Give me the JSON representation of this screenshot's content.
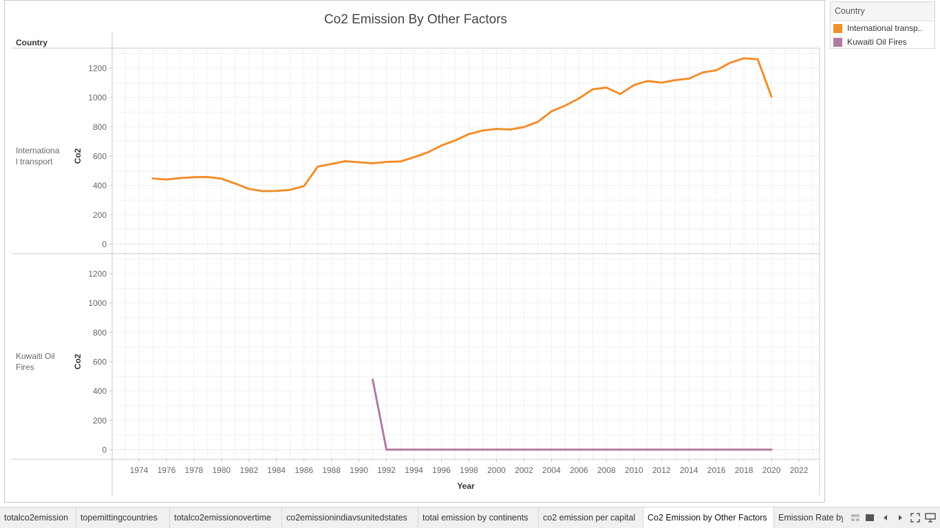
{
  "chart_data": {
    "type": "line",
    "title": "Co2 Emission By Other Factors",
    "row_header": "Country",
    "xlabel": "Year",
    "ylabel": "Co2",
    "x_ticks": [
      "1974",
      "1976",
      "1978",
      "1980",
      "1982",
      "1984",
      "1986",
      "1988",
      "1990",
      "1992",
      "1994",
      "1996",
      "1998",
      "2000",
      "2002",
      "2004",
      "2006",
      "2008",
      "2010",
      "2012",
      "2014",
      "2016",
      "2018",
      "2020",
      "2022"
    ],
    "y_ticks": [
      "0",
      "200",
      "400",
      "600",
      "800",
      "1000",
      "1200"
    ],
    "xlim": [
      1972.05,
      2023.5
    ],
    "ylim": [
      0,
      1320
    ],
    "grid": true,
    "legend_position": "right",
    "panels": [
      {
        "label": "Internationa l transport",
        "series": [
          {
            "name": "International transport",
            "color": "#f28e2b",
            "x": [
              1975,
              1976,
              1977,
              1978,
              1979,
              1980,
              1981,
              1982,
              1983,
              1984,
              1985,
              1986,
              1987,
              1988,
              1989,
              1990,
              1991,
              1992,
              1993,
              1994,
              1995,
              1996,
              1997,
              1998,
              1999,
              2000,
              2001,
              2002,
              2003,
              2004,
              2005,
              2006,
              2007,
              2008,
              2009,
              2010,
              2011,
              2012,
              2013,
              2014,
              2015,
              2016,
              2017,
              2018,
              2019,
              2020
            ],
            "y": [
              447,
              440,
              450,
              456,
              457,
              446,
              413,
              376,
              361,
              362,
              370,
              395,
              528,
              546,
              565,
              558,
              551,
              560,
              563,
              592,
              625,
              672,
              707,
              750,
              774,
              785,
              781,
              798,
              833,
              905,
              944,
              993,
              1055,
              1067,
              1023,
              1084,
              1112,
              1100,
              1118,
              1128,
              1170,
              1185,
              1236,
              1267,
              1260,
              1005
            ]
          }
        ]
      },
      {
        "label": "Kuwaiti Oil Fires",
        "series": [
          {
            "name": "Kuwaiti Oil Fires",
            "color": "#b07aa1",
            "x": [
              1991,
              1992,
              1993,
              1994,
              1995,
              1996,
              1997,
              1998,
              1999,
              2000,
              2001,
              2002,
              2003,
              2004,
              2005,
              2006,
              2007,
              2008,
              2009,
              2010,
              2011,
              2012,
              2013,
              2014,
              2015,
              2016,
              2017,
              2018,
              2019,
              2020
            ],
            "y": [
              477,
              0,
              0,
              0,
              0,
              0,
              0,
              0,
              0,
              0,
              0,
              0,
              0,
              0,
              0,
              0,
              0,
              0,
              0,
              0,
              0,
              0,
              0,
              0,
              0,
              0,
              0,
              0,
              0,
              0
            ]
          }
        ]
      }
    ]
  },
  "legend": {
    "title": "Country",
    "items": [
      {
        "label": "International transp..",
        "color": "#f28e2b"
      },
      {
        "label": "Kuwaiti Oil Fires",
        "color": "#b07aa1"
      }
    ]
  },
  "tabs": [
    {
      "label": "totalco2emission",
      "active": false
    },
    {
      "label": "topemittingcountries",
      "active": false
    },
    {
      "label": "totalco2emissionovertime",
      "active": false
    },
    {
      "label": "co2emissionindiavsunitedstates",
      "active": false
    },
    {
      "label": "total emission by continents",
      "active": false
    },
    {
      "label": "co2 emission per capital",
      "active": false
    },
    {
      "label": "Co2 Emission by Other Factors",
      "active": true
    },
    {
      "label": "Emission Rate by",
      "active": false
    }
  ],
  "tab_controls": [
    "grid-view-icon",
    "filmstrip-view-icon",
    "prev-sheet-icon",
    "next-sheet-icon",
    "fullscreen-icon",
    "present-icon"
  ]
}
